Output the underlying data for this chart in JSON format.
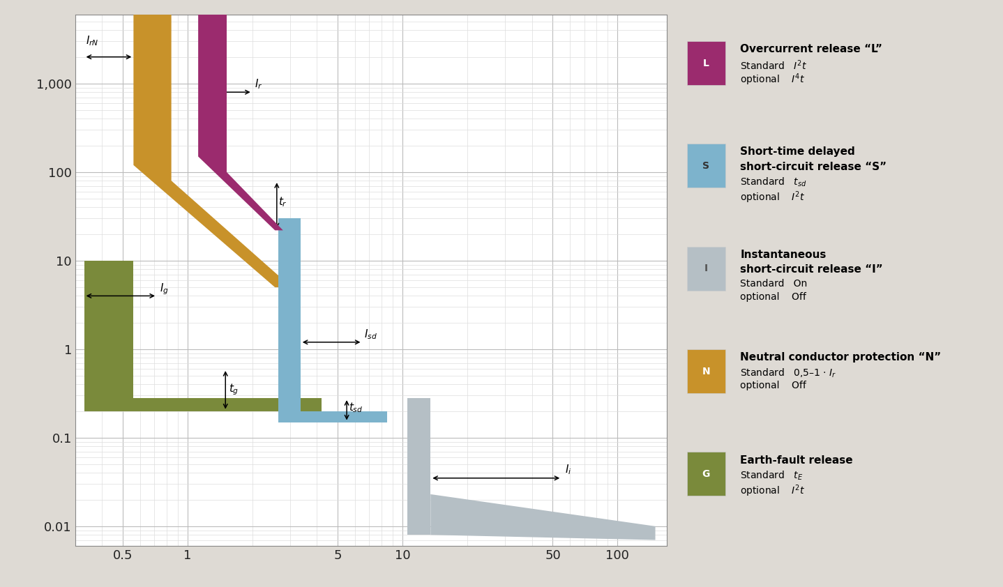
{
  "background_color": "#dedad4",
  "plot_bg_color": "#ffffff",
  "xlim": [
    0.3,
    170
  ],
  "ylim": [
    0.006,
    6000
  ],
  "xticks": [
    0.5,
    1,
    5,
    10,
    50,
    100
  ],
  "xtick_labels": [
    "0.5",
    "1",
    "5",
    "10",
    "50",
    "100"
  ],
  "yticks": [
    0.01,
    0.1,
    1,
    10,
    100,
    1000
  ],
  "ytick_labels": [
    "0.01",
    "0.1",
    "1",
    "10",
    "100",
    "1,000"
  ],
  "colors": {
    "L": "#9b2b6e",
    "S": "#7db3cc",
    "I": "#b5bfc5",
    "N": "#c8922a",
    "G": "#7a8a3b"
  },
  "legend_items": [
    {
      "color": "#9b2b6e",
      "letter": "L",
      "title1": "Overcurrent release “L”",
      "title2": "",
      "line1": "Standard   $I^2t$",
      "line2": "optional    $I^4t$"
    },
    {
      "color": "#7db3cc",
      "letter": "S",
      "title1": "Short-time delayed",
      "title2": "short-circuit release “S”",
      "line1": "Standard   $t_{sd}$",
      "line2": "optional    $I^2t$"
    },
    {
      "color": "#b5bfc5",
      "letter": "I",
      "title1": "Instantaneous",
      "title2": "short-circuit release “I”",
      "line1": "Standard   On",
      "line2": "optional    Off"
    },
    {
      "color": "#c8922a",
      "letter": "N",
      "title1": "Neutral conductor protection “N”",
      "title2": "",
      "line1": "Standard   0,5–1 · $I_r$",
      "line2": "optional    Off"
    },
    {
      "color": "#7a8a3b",
      "letter": "G",
      "title1": "Earth-fault release",
      "title2": "",
      "line1": "Standard   $t_E$",
      "line2": "optional    $I^2t$"
    }
  ]
}
